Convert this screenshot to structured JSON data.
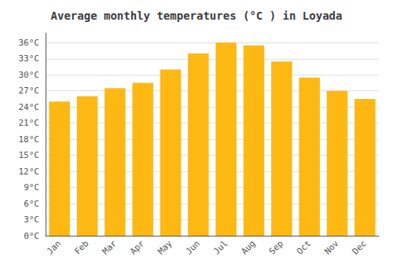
{
  "chart_data": {
    "type": "bar",
    "title": "Average monthly temperatures (°C ) in Loyada",
    "categories": [
      "Jan",
      "Feb",
      "Mar",
      "Apr",
      "May",
      "Jun",
      "Jul",
      "Aug",
      "Sep",
      "Oct",
      "Nov",
      "Dec"
    ],
    "values": [
      25.0,
      26.0,
      27.5,
      28.5,
      31.0,
      34.0,
      36.0,
      35.5,
      32.5,
      29.5,
      27.0,
      25.5
    ],
    "color": "#FDB813",
    "ylim": [
      0,
      37.8
    ],
    "yticks": [
      {
        "value": 0,
        "label": "0°C"
      },
      {
        "value": 3,
        "label": "3°C"
      },
      {
        "value": 6,
        "label": "6°C"
      },
      {
        "value": 9,
        "label": "9°C"
      },
      {
        "value": 12,
        "label": "12°C"
      },
      {
        "value": 15,
        "label": "15°C"
      },
      {
        "value": 18,
        "label": "18°C"
      },
      {
        "value": 21,
        "label": "21°C"
      },
      {
        "value": 24,
        "label": "24°C"
      },
      {
        "value": 27,
        "label": "27°C"
      },
      {
        "value": 30,
        "label": "30°C"
      },
      {
        "value": 33,
        "label": "33°C"
      },
      {
        "value": 36,
        "label": "36°C"
      }
    ],
    "grid": true
  }
}
